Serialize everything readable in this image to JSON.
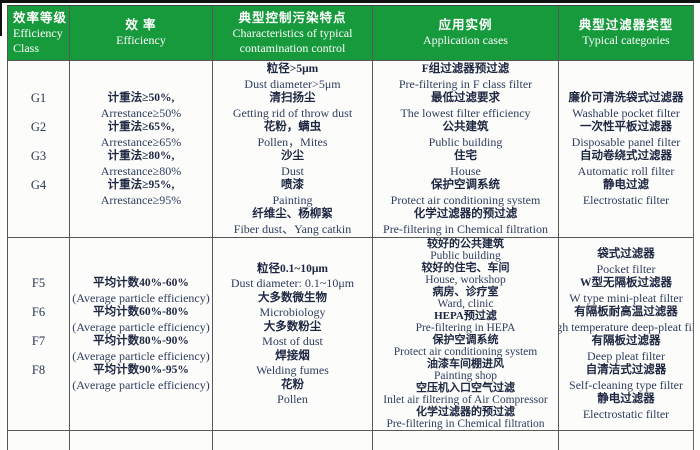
{
  "colors": {
    "header_bg": "#179a3c",
    "header_text": "#ffffff",
    "zh_text": "#1e2742",
    "en_text": "#2e3c5e",
    "border": "#585858"
  },
  "header": {
    "col1": {
      "zh": "效率等级",
      "en1": "Efficiency",
      "en2": "Class"
    },
    "col2": {
      "zh": "效  率",
      "en": "Efficiency"
    },
    "col3": {
      "zh": "典型控制污染特点",
      "en1": "Characteristics of typical",
      "en2": "contamination control"
    },
    "col4": {
      "zh": "应用实例",
      "en": "Application cases"
    },
    "col5": {
      "zh": "典型过滤器类型",
      "en": "Typical categories"
    }
  },
  "groups": [
    {
      "name": "G-group",
      "efficiency_rows": [
        {
          "class": "G1",
          "zh": "计重法≥50%,",
          "en": "Arrestance≥50%"
        },
        {
          "class": "G2",
          "zh": "计重法≥65%,",
          "en": "Arrestance≥65%"
        },
        {
          "class": "G3",
          "zh": "计重法≥80%,",
          "en": "Arrestance≥80%"
        },
        {
          "class": "G4",
          "zh": "计重法≥95%,",
          "en": "Arrestance≥95%"
        }
      ],
      "characteristics": [
        {
          "zh": "粒径>5μm",
          "en": "Dust diameter>5μm"
        },
        {
          "zh": "清扫扬尘",
          "en": "Getting rid of throw dust"
        },
        {
          "zh": "花粉，螨虫",
          "en": "Pollen，Mites"
        },
        {
          "zh": "沙尘",
          "en": "Dust"
        },
        {
          "zh": "喷漆",
          "en": "Painting"
        },
        {
          "zh": "纤维尘、杨柳絮",
          "en": "Fiber dust、Yang catkin"
        }
      ],
      "applications": [
        {
          "zh": "F组过滤器预过滤",
          "en": "Pre-filtering in F class filter"
        },
        {
          "zh": "最低过滤要求",
          "en": "The lowest filter efficiency"
        },
        {
          "zh": "公共建筑",
          "en": "Public building"
        },
        {
          "zh": "住宅",
          "en": "House"
        },
        {
          "zh": "保护空调系统",
          "en": "Protect air conditioning system"
        },
        {
          "zh": "化学过滤器的预过滤",
          "en": "Pre-filtering in Chemical filtration"
        }
      ],
      "categories": [
        {
          "zh": "廉价可清洗袋式过滤器",
          "en": "Washable pocket filter"
        },
        {
          "zh": "一次性平板过滤器",
          "en": "Disposable panel filter"
        },
        {
          "zh": "自动卷绕式过滤器",
          "en": "Automatic roll filter"
        },
        {
          "zh": "静电过滤",
          "en": "Electrostatic filter"
        }
      ],
      "applications_tight": false
    },
    {
      "name": "F-group",
      "efficiency_rows": [
        {
          "class": "F5",
          "zh": "平均计数40%-60%",
          "en": "(Average particle efficiency)"
        },
        {
          "class": "F6",
          "zh": "平均计数60%-80%",
          "en": "(Average particle efficiency)"
        },
        {
          "class": "F7",
          "zh": "平均计数80%-90%",
          "en": "(Average particle efficiency)"
        },
        {
          "class": "F8",
          "zh": "平均计数90%-95%",
          "en": "(Average particle efficiency)"
        }
      ],
      "characteristics": [
        {
          "zh": "粒径0.1~10μm",
          "en": "Dust diameter: 0.1~10μm"
        },
        {
          "zh": "大多数微生物",
          "en": "Microbiology"
        },
        {
          "zh": "大多数粉尘",
          "en": "Most of dust"
        },
        {
          "zh": "焊接烟",
          "en": "Welding fumes"
        },
        {
          "zh": "花粉",
          "en": "Pollen"
        }
      ],
      "applications": [
        {
          "zh": "较好的公共建筑",
          "en": "Public building"
        },
        {
          "zh": "较好的住宅、车间",
          "en": "House, workshop"
        },
        {
          "zh": "病房、诊疗室",
          "en": "Ward, clinic"
        },
        {
          "zh": "HEPA预过滤",
          "en": "Pre-filtering in HEPA"
        },
        {
          "zh": "保护空调系统",
          "en": "Protect air conditioning system"
        },
        {
          "zh": "油漆车间棚进风",
          "en": "Painting shop"
        },
        {
          "zh": "空压机入口空气过滤",
          "en": "Inlet air filtering of Air Compressor"
        },
        {
          "zh": "化学过滤器的预过滤",
          "en": "Pre-filtering in Chemical filtration"
        }
      ],
      "categories": [
        {
          "zh": "袋式过滤器",
          "en": "Pocket filter"
        },
        {
          "zh": "W型无隔板过滤器",
          "en": "W type mini-pleat filter"
        },
        {
          "zh": "有隔板耐高温过滤器",
          "en": "High temperature deep-pleat filter"
        },
        {
          "zh": "有隔板过滤器",
          "en": "Deep pleat filter"
        },
        {
          "zh": "自清洁式过滤器",
          "en": "Self-cleaning type filter"
        },
        {
          "zh": "静电过滤器",
          "en": "Electrostatic filter"
        }
      ],
      "applications_tight": true
    }
  ]
}
